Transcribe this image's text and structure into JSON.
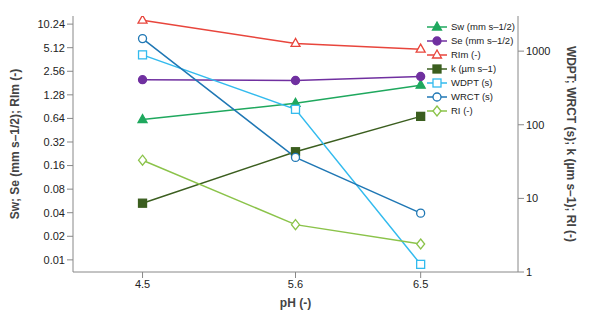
{
  "chart_data": {
    "type": "line",
    "log": "y",
    "grid": false,
    "legend": "upper right",
    "xlabel": "pH (-)",
    "ylabel": "Sw; Se (mm s–1/2); RIm (-)",
    "y2label": "WDPT; WRCT (s); k (µm s–1); RI (-)",
    "x": [
      4.5,
      5.6,
      6.5
    ],
    "xlim": [
      4,
      7.2
    ],
    "xticks": [
      4.5,
      5.6,
      6.5
    ],
    "ylim": [
      0.007,
      13
    ],
    "yticks": [
      0.01,
      0.02,
      0.04,
      0.08,
      0.16,
      0.32,
      0.64,
      1.28,
      2.56,
      5.12,
      10.24
    ],
    "y2lim": [
      1,
      3000
    ],
    "y2ticks": [
      1,
      10,
      100,
      1000
    ],
    "series": [
      {
        "name": "Sw (mm s–1/2)",
        "color": "#1fa85e",
        "marker": "triangle",
        "values": [
          0.62,
          1.0,
          1.7
        ]
      },
      {
        "name": "Se (mm s–1/2)",
        "color": "#7030a0",
        "marker": "circle",
        "values": [
          2.0,
          1.95,
          2.2
        ]
      },
      {
        "name": "RIm (-)",
        "color": "#e8453c",
        "marker": "open_triangle",
        "values": [
          11.5,
          5.8,
          4.9
        ]
      },
      {
        "name": "k (µm s–1)",
        "color": "#3b5e1f",
        "marker": "square",
        "axis": "y2",
        "values": [
          8.6,
          43,
          130
        ]
      },
      {
        "name": "WDPT (s)",
        "color": "#33bbee",
        "marker": "open_square",
        "axis": "y2",
        "values": [
          890,
          162,
          1.27
        ]
      },
      {
        "name": "WRCT (s)",
        "color": "#1f77b4",
        "marker": "open_circle",
        "axis": "y2",
        "values": [
          1480,
          36,
          6.3
        ]
      },
      {
        "name": "RI (-)",
        "color": "#8bc34a",
        "marker": "open_diamond",
        "axis": "y2",
        "values": [
          33,
          4.4,
          2.4
        ]
      }
    ]
  }
}
